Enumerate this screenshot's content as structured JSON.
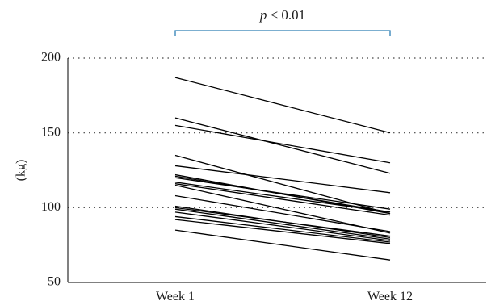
{
  "chart_data": {
    "type": "line",
    "title": "",
    "xlabel": "",
    "ylabel": "(kg)",
    "categories": [
      "Week 1",
      "Week 12"
    ],
    "yticks": [
      "50",
      "100",
      "150",
      "200"
    ],
    "ylim": [
      50,
      200
    ],
    "grid": true,
    "annotation": {
      "p_symbol": "p",
      "rest": " < 0.01"
    },
    "series": [
      {
        "values": [
          187,
          150
        ]
      },
      {
        "values": [
          160,
          123
        ]
      },
      {
        "values": [
          155,
          130
        ]
      },
      {
        "values": [
          135,
          96
        ]
      },
      {
        "values": [
          128,
          110
        ]
      },
      {
        "values": [
          122,
          96
        ]
      },
      {
        "values": [
          121,
          97
        ]
      },
      {
        "values": [
          120,
          99
        ]
      },
      {
        "values": [
          117,
          97
        ]
      },
      {
        "values": [
          116,
          95
        ]
      },
      {
        "values": [
          115,
          83
        ]
      },
      {
        "values": [
          108,
          84
        ]
      },
      {
        "values": [
          101,
          80
        ]
      },
      {
        "values": [
          100,
          81
        ]
      },
      {
        "values": [
          99,
          79
        ]
      },
      {
        "values": [
          97,
          78
        ]
      },
      {
        "values": [
          94,
          77
        ]
      },
      {
        "values": [
          92,
          76
        ]
      },
      {
        "values": [
          85,
          65
        ]
      }
    ]
  }
}
